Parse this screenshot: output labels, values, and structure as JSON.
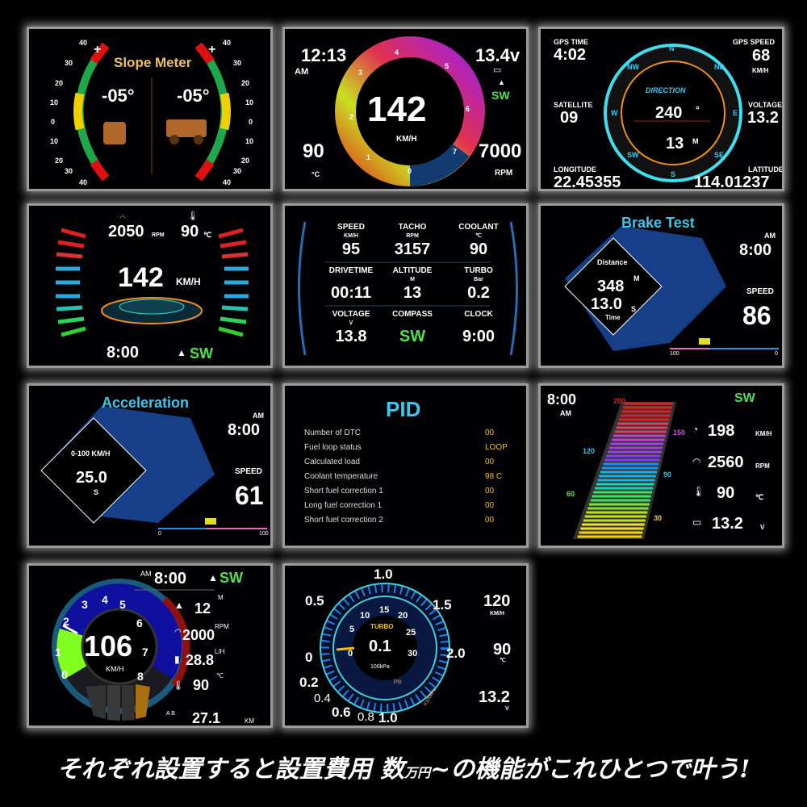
{
  "slope": {
    "title": "Slope Meter",
    "left_angle": "-05°",
    "right_angle": "-05°",
    "scale": [
      "40",
      "30",
      "20",
      "10",
      "0",
      "10",
      "20",
      "30",
      "40"
    ],
    "plus": "+",
    "minus": "−"
  },
  "speedo1": {
    "time": "12:13",
    "ampm": "AM",
    "speed": "142",
    "unit": "KM/H",
    "voltage": "13.4v",
    "direction": "SW",
    "temp": "90",
    "temp_unit": "°C",
    "rpm": "7000",
    "rpm_unit": "RPM",
    "scale": [
      "0",
      "1",
      "2",
      "3",
      "4",
      "5",
      "6",
      "7"
    ]
  },
  "gps": {
    "time_label": "GPS TIME",
    "time": "4:02",
    "speed_label": "GPS SPEED",
    "speed": "68",
    "speed_unit": "KM/H",
    "sat_label": "SATELLITE",
    "sat": "09",
    "volt_label": "VOLTAGE",
    "volt": "13.2",
    "direction_label": "DIRECTION",
    "heading": "240",
    "heading_unit": "°",
    "altitude": "13",
    "altitude_unit": "M",
    "lon_label": "LONGITUDE",
    "lon": "22.45355",
    "lat_label": "LATITUDE",
    "lat": "114.01237",
    "compass": [
      "N",
      "NE",
      "E",
      "SE",
      "S",
      "SW",
      "W",
      "NW"
    ]
  },
  "dash2": {
    "rpm": "2050",
    "rpm_unit": "RPM",
    "temp": "90",
    "temp_unit": "℃",
    "speed": "142",
    "speed_unit": "KM/H",
    "time": "8:00",
    "direction": "SW"
  },
  "grid": {
    "cells": [
      {
        "label": "SPEED",
        "unit": "KM/H",
        "value": "95"
      },
      {
        "label": "TACHO",
        "unit": "RPM",
        "value": "3157"
      },
      {
        "label": "COOLANT",
        "unit": "℃",
        "value": "90"
      },
      {
        "label": "DRIVETIME",
        "unit": "",
        "value": "00:11"
      },
      {
        "label": "ALTITUDE",
        "unit": "M",
        "value": "13"
      },
      {
        "label": "TURBO",
        "unit": "Bar",
        "value": "0.2"
      },
      {
        "label": "VOLTAGE",
        "unit": "V",
        "value": "13.8"
      },
      {
        "label": "COMPASS",
        "unit": "",
        "value": "SW"
      },
      {
        "label": "CLOCK",
        "unit": "",
        "value": "9:00"
      }
    ]
  },
  "brake": {
    "title": "Brake Test",
    "distance_label": "Distance",
    "distance": "348",
    "distance_unit": "M",
    "time": "13.0",
    "time_unit": "S",
    "time_label": "Time",
    "ampm": "AM",
    "clock": "8:00",
    "speed_label": "SPEED",
    "speed": "86",
    "bar_start": "100",
    "bar_end": "0"
  },
  "accel": {
    "title": "Acceleration",
    "label": "0-100 KM/H",
    "time": "25.0",
    "time_unit": "S",
    "ampm": "AM",
    "clock": "8:00",
    "speed_label": "SPEED",
    "speed": "61",
    "bar_start": "0",
    "bar_end": "100"
  },
  "pid": {
    "title": "PID",
    "rows": [
      {
        "name": "Number of DTC",
        "value": "00"
      },
      {
        "name": "Fuel loop status",
        "value": "LOOP"
      },
      {
        "name": "Calculated load",
        "value": "00"
      },
      {
        "name": "Coolant temperature",
        "value": "98 C"
      },
      {
        "name": "Short fuel correction 1",
        "value": "00"
      },
      {
        "name": "Long fuel correction 1",
        "value": "00"
      },
      {
        "name": "Short fuel correction 2",
        "value": "00"
      }
    ]
  },
  "bars": {
    "time": "8:00",
    "ampm": "AM",
    "direction": "SW",
    "scale": [
      "200",
      "150",
      "120",
      "90",
      "60",
      "30"
    ],
    "speed": "198",
    "speed_unit": "KM/H",
    "rpm": "2560",
    "rpm_unit": "RPM",
    "temp": "90",
    "temp_unit": "℃",
    "volt": "13.2",
    "volt_unit": "V"
  },
  "cluster": {
    "ampm": "AM",
    "time": "8:00",
    "direction": "SW",
    "speed": "106",
    "speed_unit": "KM/H",
    "scale": [
      "0",
      "1",
      "2",
      "3",
      "4",
      "5",
      "6",
      "7",
      "8"
    ],
    "alt_unit": "M",
    "alt": "12",
    "rpm_unit": "RPM",
    "rpm": "2000",
    "fuel_unit": "L/H",
    "fuel": "28.8",
    "temp_unit": "℃",
    "temp": "90",
    "trip_label": "A B",
    "trip": "27.1",
    "trip_unit": "KM"
  },
  "turbo": {
    "label": "TURBO",
    "value": "0.1",
    "unit": "100kPa",
    "psi_label": "PSI",
    "kpa_label": "X100kPa",
    "outer_scale": [
      "1.0",
      "1.5",
      "2.0",
      "0.5",
      "0",
      "0.2",
      "0.4",
      "0.6",
      "0.8",
      "1.0"
    ],
    "inner_scale": [
      "0",
      "5",
      "10",
      "15",
      "20",
      "25",
      "30"
    ],
    "speed": "120",
    "speed_unit": "KM/H",
    "temp": "90",
    "temp_unit": "℃",
    "volt": "13.2",
    "volt_unit": "V"
  },
  "caption": {
    "main": "それぞれ設置すると設置費用 数",
    "small": "万円",
    "rest": "~の機能がこれひとつで叶う!"
  }
}
